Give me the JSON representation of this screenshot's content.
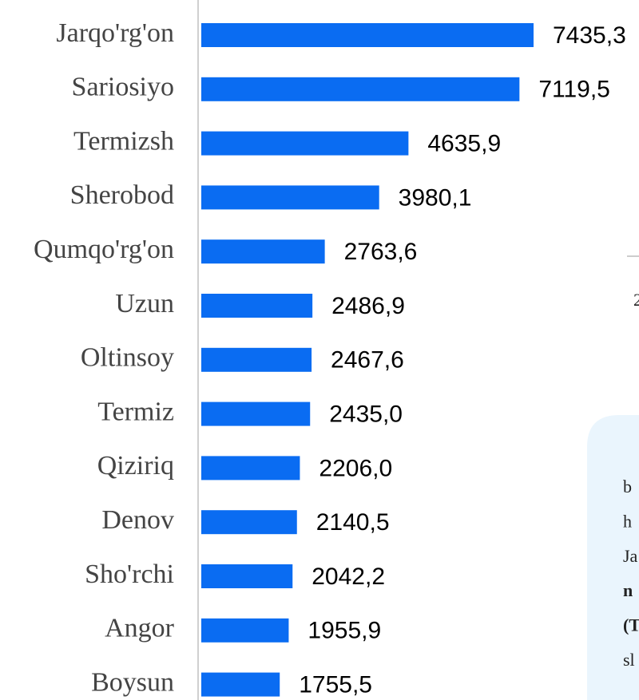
{
  "chart_data": {
    "type": "bar",
    "orientation": "horizontal",
    "categories": [
      "Jarqo'rg'on",
      "Sariosiyo",
      "Termizsh",
      "Sherobod",
      "Qumqo'rg'on",
      "Uzun",
      "Oltinsoy",
      "Termiz",
      "Qiziriq",
      "Denov",
      "Sho'rchi",
      "Angor",
      "Boysun"
    ],
    "values": [
      7435.3,
      7119.5,
      4635.9,
      3980.1,
      2763.6,
      2486.9,
      2467.6,
      2435.0,
      2206.0,
      2140.5,
      2042.2,
      1955.9,
      1755.5
    ],
    "value_labels": [
      "7435,3",
      "7119,5",
      "4635,9",
      "3980,1",
      "2763,6",
      "2486,9",
      "2467,6",
      "2435,0",
      "2206,0",
      "2140,5",
      "2042,2",
      "1955,9",
      "1755,5"
    ],
    "color": "#0a6cf2"
  },
  "side_fragments": {
    "axis_text": "2",
    "note_lines": [
      "b",
      "h",
      "Ja",
      "n",
      "(T",
      "sl"
    ]
  }
}
